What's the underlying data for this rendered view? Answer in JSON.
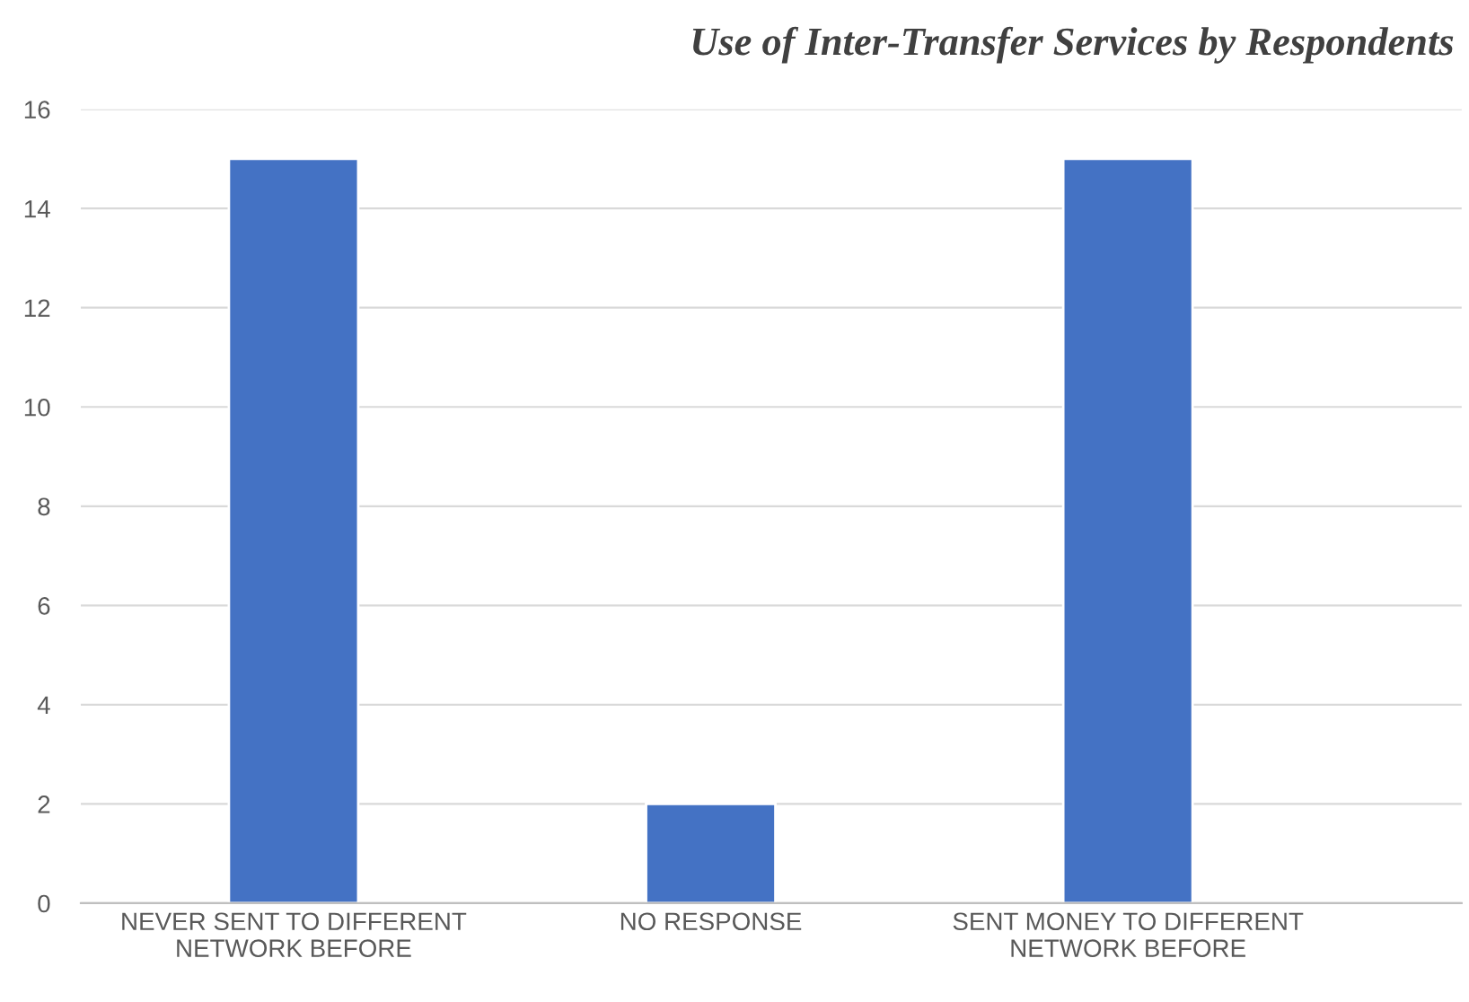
{
  "chart_data": {
    "type": "bar",
    "title": "Use of Inter-Transfer Services by Respondents",
    "categories": [
      "NEVER SENT TO DIFFERENT\nNETWORK BEFORE",
      "NO RESPONSE",
      "SENT MONEY TO DIFFERENT\nNETWORK BEFORE"
    ],
    "values": [
      15,
      2,
      15
    ],
    "color": "#4472c4",
    "ylim": [
      0,
      16
    ],
    "yticks": [
      0,
      2,
      4,
      6,
      8,
      10,
      12,
      14,
      16
    ],
    "grid": "y",
    "legend": false
  }
}
